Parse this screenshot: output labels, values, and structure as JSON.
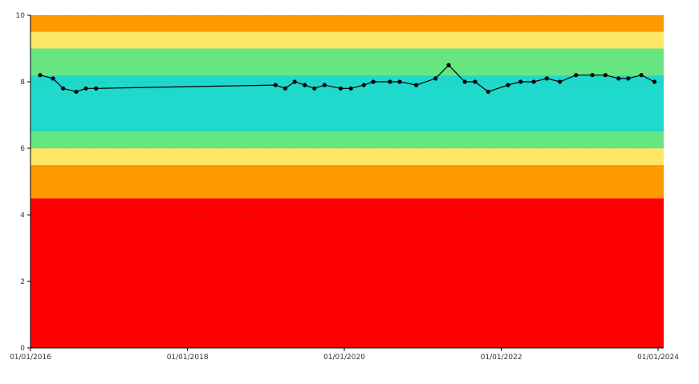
{
  "chart_data": {
    "type": "line",
    "title": "",
    "xlabel": "",
    "ylabel": "",
    "x_axis": {
      "type": "date",
      "range": [
        "2016-01-01",
        "2024-01-01"
      ],
      "tick_labels": [
        "01/01/2016",
        "01/01/2018",
        "01/01/2020",
        "01/01/2022",
        "01/01/2024"
      ],
      "tick_dates": [
        "2016-01-01",
        "2018-01-01",
        "2020-01-01",
        "2022-01-01",
        "2024-01-01"
      ]
    },
    "y_axis": {
      "range": [
        0,
        10
      ],
      "ticks": [
        0,
        2,
        4,
        6,
        8,
        10
      ]
    },
    "grid": true,
    "background_bands": [
      {
        "from": 0,
        "to": 4.5,
        "color": "#ff0000"
      },
      {
        "from": 4.5,
        "to": 5.5,
        "color": "#ff9900"
      },
      {
        "from": 5.5,
        "to": 6.0,
        "color": "#ffe766"
      },
      {
        "from": 6.0,
        "to": 6.5,
        "color": "#66e680"
      },
      {
        "from": 6.5,
        "to": 8.2,
        "color": "#1ed9cc"
      },
      {
        "from": 8.2,
        "to": 9.0,
        "color": "#66e680"
      },
      {
        "from": 9.0,
        "to": 9.5,
        "color": "#ffe766"
      },
      {
        "from": 9.5,
        "to": 10.0,
        "color": "#ff9900"
      }
    ],
    "series": [
      {
        "color": "#000000",
        "points": [
          {
            "x": "2016-02-15",
            "y": 8.2
          },
          {
            "x": "2016-04-15",
            "y": 8.1
          },
          {
            "x": "2016-06-01",
            "y": 7.8
          },
          {
            "x": "2016-08-01",
            "y": 7.7
          },
          {
            "x": "2016-09-15",
            "y": 7.8
          },
          {
            "x": "2016-11-01",
            "y": 7.8
          },
          {
            "x": "2019-02-15",
            "y": 7.9
          },
          {
            "x": "2019-04-01",
            "y": 7.8
          },
          {
            "x": "2019-05-15",
            "y": 8.0
          },
          {
            "x": "2019-07-01",
            "y": 7.9
          },
          {
            "x": "2019-08-15",
            "y": 7.8
          },
          {
            "x": "2019-10-01",
            "y": 7.9
          },
          {
            "x": "2019-12-15",
            "y": 7.8
          },
          {
            "x": "2020-02-01",
            "y": 7.8
          },
          {
            "x": "2020-04-01",
            "y": 7.9
          },
          {
            "x": "2020-05-15",
            "y": 8.0
          },
          {
            "x": "2020-08-01",
            "y": 8.0
          },
          {
            "x": "2020-09-15",
            "y": 8.0
          },
          {
            "x": "2020-12-01",
            "y": 7.9
          },
          {
            "x": "2021-03-01",
            "y": 8.1
          },
          {
            "x": "2021-05-01",
            "y": 8.5
          },
          {
            "x": "2021-07-15",
            "y": 8.0
          },
          {
            "x": "2021-09-01",
            "y": 8.0
          },
          {
            "x": "2021-11-01",
            "y": 7.7
          },
          {
            "x": "2022-02-01",
            "y": 7.9
          },
          {
            "x": "2022-04-01",
            "y": 8.0
          },
          {
            "x": "2022-06-01",
            "y": 8.0
          },
          {
            "x": "2022-08-01",
            "y": 8.1
          },
          {
            "x": "2022-10-01",
            "y": 8.0
          },
          {
            "x": "2022-12-15",
            "y": 8.2
          },
          {
            "x": "2023-03-01",
            "y": 8.2
          },
          {
            "x": "2023-05-01",
            "y": 8.2
          },
          {
            "x": "2023-07-01",
            "y": 8.1
          },
          {
            "x": "2023-08-15",
            "y": 8.1
          },
          {
            "x": "2023-10-15",
            "y": 8.2
          },
          {
            "x": "2023-12-15",
            "y": 8.0
          }
        ]
      }
    ]
  }
}
